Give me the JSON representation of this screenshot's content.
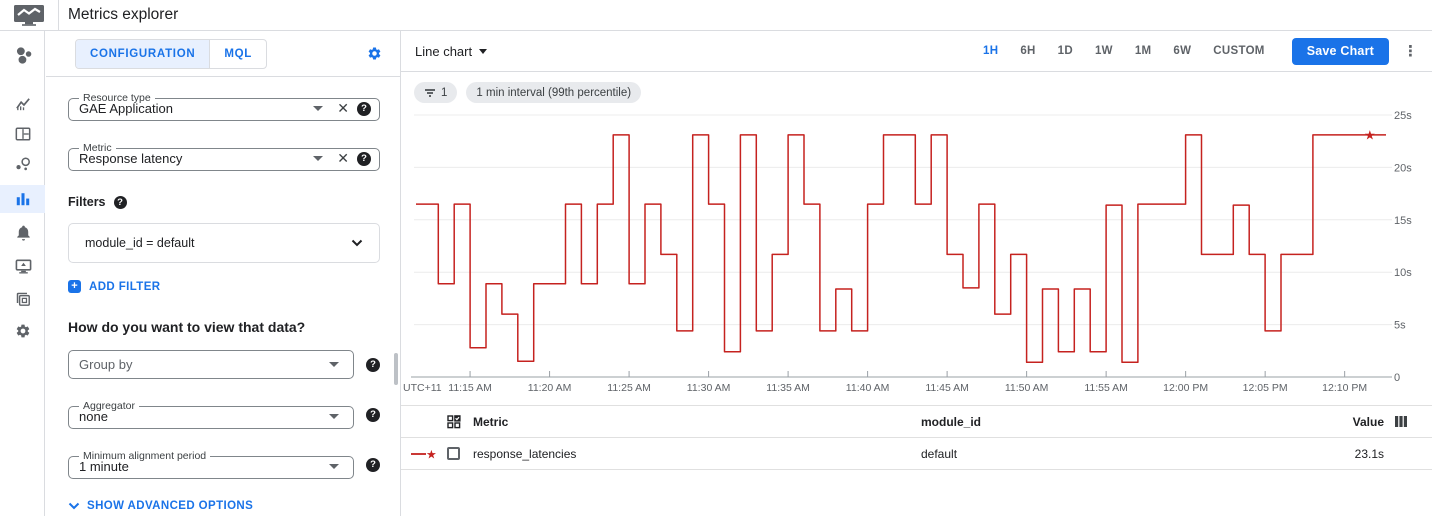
{
  "header": {
    "title": "Metrics explorer"
  },
  "sidebar": {
    "icons": [
      "monitoring-overview-icon",
      "charts-icon",
      "dashboards-icon",
      "services-icon",
      "metrics-explorer-icon",
      "alerting-icon",
      "uptime-checks-icon",
      "groups-icon",
      "settings-icon"
    ],
    "active": "metrics-explorer-icon"
  },
  "config_panel": {
    "tabs": [
      {
        "label": "CONFIGURATION",
        "active": true
      },
      {
        "label": "MQL",
        "active": false
      }
    ],
    "resource_type": {
      "label": "Resource type",
      "value": "GAE Application"
    },
    "metric": {
      "label": "Metric",
      "value": "Response latency"
    },
    "filters_label": "Filters",
    "filter_value": "module_id = default",
    "add_filter_label": "ADD FILTER",
    "view_question": "How do you want to view that data?",
    "group_by": {
      "placeholder": "Group by"
    },
    "aggregator": {
      "label": "Aggregator",
      "value": "none"
    },
    "min_alignment": {
      "label": "Minimum alignment period",
      "value": "1 minute"
    },
    "show_advanced_label": "SHOW ADVANCED OPTIONS"
  },
  "chart_panel": {
    "chart_type_label": "Line chart",
    "time_ranges": [
      "1H",
      "6H",
      "1D",
      "1W",
      "1M",
      "6W",
      "CUSTOM"
    ],
    "active_time_range": "1H",
    "save_button_label": "Save Chart",
    "filter_chip_count": "1",
    "interval_chip_label": "1 min interval (99th percentile)"
  },
  "chart_data": {
    "type": "line",
    "subtype": "step-after",
    "title": "",
    "xlabel": "",
    "ylabel": "",
    "ylim": [
      0,
      25
    ],
    "unit": "s",
    "grid": true,
    "x_axis_prefix": "UTC+11",
    "x_start": "11:12 AM",
    "interval_minutes": 1,
    "x_tick_labels": [
      "11:15 AM",
      "11:20 AM",
      "11:25 AM",
      "11:30 AM",
      "11:35 AM",
      "11:40 AM",
      "11:45 AM",
      "11:50 AM",
      "11:55 AM",
      "12:00 PM",
      "12:05 PM",
      "12:10 PM"
    ],
    "x_tick_first_index": 3,
    "x_tick_step": 5,
    "y_ticks": [
      25,
      20,
      15,
      10,
      5,
      0
    ],
    "y_tick_labels": [
      "25s",
      "20s",
      "15s",
      "10s",
      "5s",
      "0"
    ],
    "series": [
      {
        "name": "response_latencies",
        "color": "#c5221f",
        "marker": "star-at-latest",
        "latest_value": "23.1s",
        "values": [
          16.5,
          8.9,
          16.5,
          2.8,
          8.9,
          6.0,
          1.5,
          8.9,
          8.9,
          16.5,
          8.9,
          16.5,
          23.1,
          8.9,
          16.5,
          11.7,
          4.4,
          23.1,
          16.5,
          2.4,
          23.1,
          4.4,
          11.7,
          23.1,
          16.5,
          4.4,
          8.4,
          4.4,
          16.5,
          23.1,
          23.1,
          16.5,
          23.1,
          11.7,
          8.5,
          16.5,
          6.0,
          11.7,
          1.4,
          8.4,
          2.4,
          8.4,
          2.4,
          16.4,
          1.4,
          16.5,
          16.5,
          16.5,
          23.1,
          11.7,
          11.7,
          16.4,
          11.7,
          4.4,
          11.7,
          11.7,
          23.1,
          23.1,
          23.1,
          23.1
        ]
      }
    ]
  },
  "table": {
    "columns": {
      "metric": "Metric",
      "module_id": "module_id",
      "value": "Value"
    },
    "rows": [
      {
        "metric": "response_latencies",
        "module_id": "default",
        "value": "23.1s"
      }
    ]
  },
  "colors": {
    "accent_blue": "#1a73e8",
    "series_red": "#c5221f",
    "border": "#dadce0",
    "active_bg": "#e8f0fe"
  }
}
